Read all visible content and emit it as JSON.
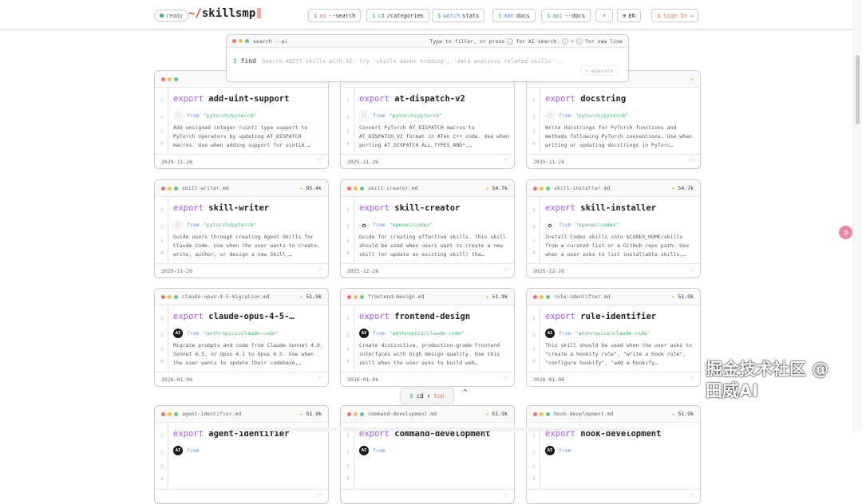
{
  "header": {
    "status": "ready",
    "brand_tilde": "~/",
    "brand": "skillsmp",
    "nav": [
      {
        "prefix": "$",
        "cmd": "ai",
        "arg": "--search",
        "color": "o"
      },
      {
        "prefix": "$",
        "cmd": "cd",
        "arg": "/categories",
        "color": "b"
      },
      {
        "prefix": "$",
        "cmd": "watch",
        "arg": "stats",
        "color": "b"
      },
      {
        "prefix": "$",
        "cmd": "man",
        "arg": "docs",
        "color": "b"
      },
      {
        "prefix": "$",
        "cmd": "api",
        "arg": "--docs",
        "color": "b"
      }
    ],
    "theme_icon": "☼",
    "lang": "EN",
    "signin": "$ Sign In"
  },
  "search": {
    "title": "search --ai",
    "hint1": "Type to filter, or press",
    "hint2": "for AI search.",
    "hint3": "+",
    "hint4": "for new line",
    "prompt": "$ find",
    "placeholder": "Search 48277 skills with AI: try 'skills about trading', 'data analysis related skills'...",
    "execute": "execute"
  },
  "cards": [
    {
      "file": "",
      "stars": "",
      "name": "add-uint-support",
      "from": "\"pytorch/pytorch\"",
      "org": "pytorch",
      "desc": "Add unsigned integer (uint) type support to PyTorch operators by updating AT_DISPATCH macros. Use when adding support for uint16,…",
      "date": "2025-11-26"
    },
    {
      "file": "",
      "stars": "",
      "name": "at-dispatch-v2",
      "from": "\"pytorch/pytorch\"",
      "org": "pytorch",
      "desc": "Convert PyTorch AT_DISPATCH macros to AT_DISPATCH_V2 format in ATen C++ code. Use when porting AT_DISPATCH_ALL_TYPES_AND*,…",
      "date": "2025-11-26"
    },
    {
      "file": "",
      "stars": "",
      "name": "docstring",
      "from": "\"pytorch/pytorch\"",
      "org": "pytorch",
      "desc": "Write docstrings for PyTorch functions and methods following PyTorch conventions. Use when writing or updating docstrings in PyTorc…",
      "date": "2025-11-26"
    },
    {
      "file": "skill-writer.md",
      "stars": "95.4k",
      "name": "skill-writer",
      "from": "\"pytorch/pytorch\"",
      "org": "pytorch",
      "desc": "Guide users through creating Agent Skills for Claude Code. Use when the user wants to create, write, author, or design a new Skill,…",
      "date": "2025-11-26"
    },
    {
      "file": "skill-creator.md",
      "stars": "54.7k",
      "name": "skill-creator",
      "from": "\"openai/codex\"",
      "org": "openai",
      "desc": "Guide for creating effective skills. This skill should be used when users want to create a new skill (or update an existing skill) tha…",
      "date": "2025-12-26"
    },
    {
      "file": "skill-installer.md",
      "stars": "54.7k",
      "name": "skill-installer",
      "from": "\"openai/codex\"",
      "org": "openai",
      "desc": "Install Codex skills into $CODEX_HOME/skills from a curated list or a GitHub repo path. Use when a user asks to list installable skills,…",
      "date": "2025-12-26"
    },
    {
      "file": "claude-opus-4-5-migration.md",
      "stars": "51.9k",
      "name": "claude-opus-4-5-…",
      "from": "\"anthropics/claude-code\"",
      "org": "anthropic",
      "desc": "Migrate prompts and code from Claude Sonnet 4.0, Sonnet 4.5, or Opus 4.1 to Opus 4.5. Use when the user wants to update their codebase,…",
      "date": "2026-01-06"
    },
    {
      "file": "frontend-design.md",
      "stars": "51.9k",
      "name": "frontend-design",
      "from": "\"anthropics/claude-code\"",
      "org": "anthropic",
      "desc": "Create distinctive, production-grade frontend interfaces with high design quality. Use this skill when the user asks to build web…",
      "date": "2026-01-06"
    },
    {
      "file": "rule-identifier.md",
      "stars": "51.9k",
      "name": "rule-identifier",
      "from": "\"anthropics/claude-code\"",
      "org": "anthropic",
      "desc": "This skill should be used when the user asks to \"create a hookify rule\", \"write a hook rule\", \"configure hookify\", \"add a hookify…",
      "date": "2026-01-06"
    },
    {
      "file": "agent-identifier.md",
      "stars": "51.9k",
      "name": "agent-identifier",
      "from": "",
      "org": "anthropic",
      "desc": "",
      "date": ""
    },
    {
      "file": "command-development.md",
      "stars": "51.9k",
      "name": "command-development",
      "from": "",
      "org": "anthropic",
      "desc": "",
      "date": ""
    },
    {
      "file": "hook-development.md",
      "stars": "51.9k",
      "name": "hook-development",
      "from": "",
      "org": "anthropic",
      "desc": "",
      "date": ""
    }
  ],
  "card_labels": {
    "export": "export",
    "from": "from"
  },
  "totop": {
    "prefix": "$",
    "cmd": "cd",
    "arrow": "↑",
    "label": "top"
  },
  "watermark": "掘金技术社区 @ 田威AI",
  "colors": {
    "accent": "#3cba6c",
    "keyword": "#a855f7",
    "string": "#3cba6c",
    "star": "#f0a92b"
  }
}
